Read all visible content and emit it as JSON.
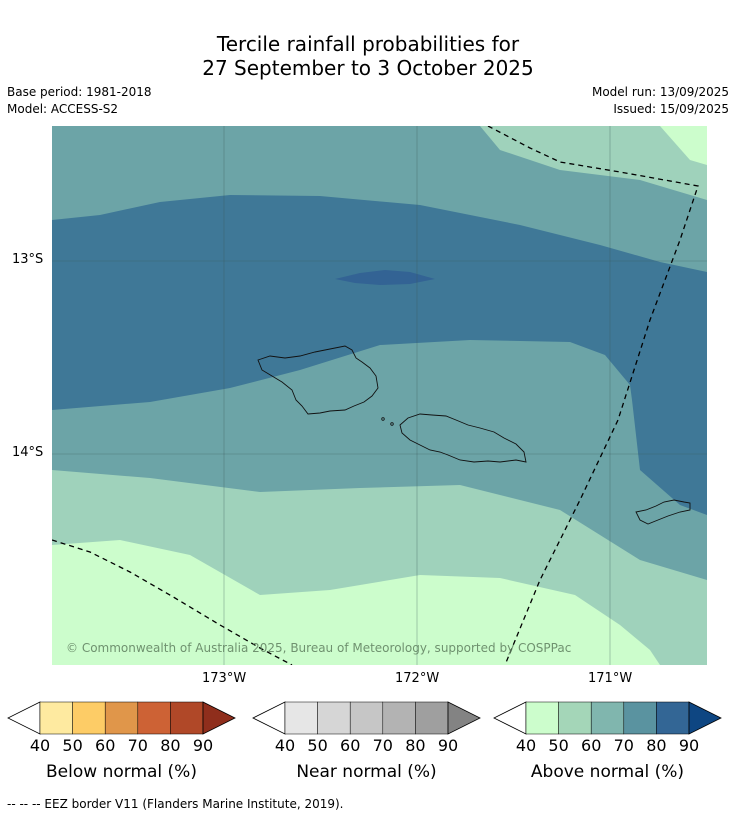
{
  "title_line1": "Tercile rainfall probabilities for",
  "title_line2": "27 September to 3 October 2025",
  "meta": {
    "base_period": "Base period: 1981-2018",
    "model": "Model: ACCESS-S2",
    "model_run": "Model run: 13/09/2025",
    "issued": "Issued: 15/09/2025"
  },
  "map": {
    "lat_labels": [
      "13°S",
      "14°S"
    ],
    "lon_labels": [
      "173°W",
      "172°W",
      "171°W"
    ],
    "copyright": "© Commonwealth of Australia 2025, Bureau of Meteorology, supported by COSPPac"
  },
  "colorbars": [
    {
      "label": "Below normal (%)",
      "ticks": [
        "40",
        "50",
        "60",
        "70",
        "80",
        "90"
      ],
      "colors": [
        "#feeaa0",
        "#fdcc66",
        "#e0964a",
        "#cd6235",
        "#b04828",
        "#8f2e1c"
      ]
    },
    {
      "label": "Near normal (%)",
      "ticks": [
        "40",
        "50",
        "60",
        "70",
        "80",
        "90"
      ],
      "colors": [
        "#e6e6e6",
        "#d6d6d6",
        "#c6c6c6",
        "#b3b3b3",
        "#9f9f9f",
        "#838383"
      ]
    },
    {
      "label": "Above normal (%)",
      "ticks": [
        "40",
        "50",
        "60",
        "70",
        "80",
        "90"
      ],
      "colors": [
        "#ccfdcc",
        "#a4d6b8",
        "#80b6ae",
        "#5a93a0",
        "#336695",
        "#0e4682"
      ]
    }
  ],
  "footer": "--  --  -- EEZ border V11 (Flanders Marine Institute, 2019)."
}
